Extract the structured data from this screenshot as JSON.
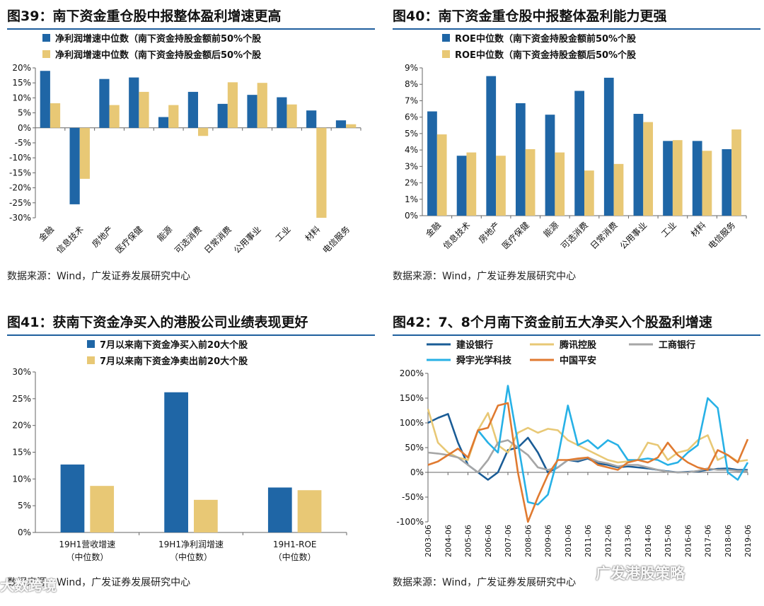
{
  "colors": {
    "blue": "#1f66a6",
    "gold": "#e8c875",
    "gray": "#a6a6a6",
    "cyan": "#27b1e6",
    "orange": "#e07a30",
    "navy": "#1a5c96"
  },
  "source_note": "数据来源：Wind，广发证券发展研究中心",
  "watermarks": {
    "left": "大数跨境",
    "right": "广发港股策略"
  },
  "chart_data": [
    {
      "id": "fig39",
      "type": "bar",
      "title": "图39：南下资金重仓股中报整体盈利增速更高",
      "categories": [
        "金融",
        "信息技术",
        "房地产",
        "医疗保健",
        "能源",
        "可选消费",
        "日常消费",
        "公用事业",
        "工业",
        "材料",
        "电信服务"
      ],
      "series": [
        {
          "name": "净利润增速中位数（南下资金持股金额前50%个股",
          "color": "#1f66a6",
          "values": [
            19,
            -25.5,
            16.3,
            16.8,
            3.6,
            12,
            8,
            11,
            10.2,
            5.8,
            2.5
          ]
        },
        {
          "name": "净利润增速中位数（南下资金持股金额后50%个股",
          "color": "#e8c875",
          "values": [
            8.2,
            -17,
            7.6,
            12,
            7.6,
            -2.7,
            15.2,
            15,
            7.8,
            -30,
            1.2
          ]
        }
      ],
      "ylim": [
        -30,
        20
      ],
      "yticks": [
        -30,
        -25,
        -20,
        -15,
        -10,
        -5,
        0,
        5,
        10,
        15,
        20
      ],
      "yformat": "%"
    },
    {
      "id": "fig40",
      "type": "bar",
      "title": "图40：南下资金重仓股中报整体盈利能力更强",
      "categories": [
        "金融",
        "信息技术",
        "房地产",
        "医疗保健",
        "能源",
        "可选消费",
        "日常消费",
        "公用事业",
        "工业",
        "材料",
        "电信服务"
      ],
      "series": [
        {
          "name": "ROE中位数（南下资金持股金额前50%个股",
          "color": "#1f66a6",
          "values": [
            6.35,
            3.65,
            8.5,
            6.85,
            6.15,
            7.6,
            8.4,
            6.2,
            4.55,
            4.55,
            4.05
          ]
        },
        {
          "name": "ROE中位数（南下资金持股金额后50%个股",
          "color": "#e8c875",
          "values": [
            4.95,
            3.85,
            3.65,
            4.05,
            3.85,
            2.75,
            3.15,
            5.7,
            4.6,
            3.95,
            5.25
          ]
        }
      ],
      "ylim": [
        0,
        9
      ],
      "yticks": [
        0,
        1,
        2,
        3,
        4,
        5,
        6,
        7,
        8,
        9
      ],
      "yformat": "%"
    },
    {
      "id": "fig41",
      "type": "bar",
      "title": "图41：获南下资金净买入的港股公司业绩表现更好",
      "categories": [
        "19H1营收增速",
        "19H1净利润增速",
        "19H1-ROE"
      ],
      "category_sub": [
        "（中位数）",
        "（中位数）",
        "（中位数）"
      ],
      "series": [
        {
          "name": "7月以来南下资金净买入前20大个股",
          "color": "#1f66a6",
          "values": [
            12.7,
            26.2,
            8.4
          ]
        },
        {
          "name": "7月以来南下资金净卖出前20大个股",
          "color": "#e8c875",
          "values": [
            8.7,
            6.1,
            7.9
          ]
        }
      ],
      "ylim": [
        0,
        30
      ],
      "yticks": [
        0,
        5,
        10,
        15,
        20,
        25,
        30
      ],
      "yformat": "%"
    },
    {
      "id": "fig42",
      "type": "line",
      "title": "图42：7、8个月南下资金前五大净买入个股盈利增速",
      "x": [
        "2003-06",
        "2003-12",
        "2004-06",
        "2004-12",
        "2005-06",
        "2005-12",
        "2006-06",
        "2006-12",
        "2007-06",
        "2007-12",
        "2008-06",
        "2008-12",
        "2009-06",
        "2009-12",
        "2010-06",
        "2010-12",
        "2011-06",
        "2011-12",
        "2012-06",
        "2012-12",
        "2013-06",
        "2013-12",
        "2014-06",
        "2014-12",
        "2015-06",
        "2015-12",
        "2016-06",
        "2016-12",
        "2017-06",
        "2017-12",
        "2018-06",
        "2018-12",
        "2019-06"
      ],
      "xticks": [
        "2003-06",
        "2004-06",
        "2005-06",
        "2006-06",
        "2007-06",
        "2008-06",
        "2009-06",
        "2010-06",
        "2011-06",
        "2012-06",
        "2013-06",
        "2014-06",
        "2015-06",
        "2016-06",
        "2017-06",
        "2018-06",
        "2019-06"
      ],
      "series": [
        {
          "name": "建设银行",
          "color": "#1a5c96",
          "values": [
            100,
            110,
            118,
            60,
            15,
            0,
            -15,
            0,
            45,
            50,
            70,
            40,
            0,
            10,
            25,
            22,
            28,
            18,
            15,
            10,
            12,
            10,
            8,
            5,
            2,
            0,
            1,
            2,
            5,
            7,
            8,
            5,
            5
          ]
        },
        {
          "name": "腾讯控股",
          "color": "#e8c875",
          "values": [
            128,
            60,
            40,
            30,
            25,
            85,
            120,
            55,
            40,
            80,
            90,
            80,
            88,
            85,
            65,
            55,
            45,
            35,
            25,
            20,
            22,
            25,
            60,
            55,
            25,
            40,
            45,
            65,
            75,
            25,
            35,
            22,
            25
          ]
        },
        {
          "name": "工商银行",
          "color": "#a6a6a6",
          "values": [
            40,
            38,
            35,
            30,
            15,
            0,
            25,
            60,
            65,
            50,
            35,
            10,
            5,
            10,
            25,
            25,
            30,
            22,
            18,
            12,
            15,
            15,
            10,
            5,
            1,
            0,
            0,
            3,
            8,
            5,
            5,
            3,
            3
          ]
        },
        {
          "name": "舜宇光学科技",
          "color": "#27b1e6",
          "values": [
            null,
            null,
            null,
            null,
            null,
            85,
            60,
            40,
            175,
            60,
            -60,
            -65,
            -45,
            30,
            135,
            55,
            65,
            48,
            65,
            55,
            25,
            25,
            28,
            25,
            15,
            20,
            40,
            55,
            150,
            130,
            0,
            -15,
            20
          ]
        },
        {
          "name": "中国平安",
          "color": "#e07a30",
          "values": [
            15,
            22,
            35,
            48,
            30,
            85,
            90,
            135,
            140,
            0,
            -100,
            -50,
            -5,
            25,
            25,
            28,
            30,
            15,
            10,
            5,
            20,
            25,
            20,
            30,
            60,
            35,
            20,
            10,
            5,
            45,
            35,
            20,
            67
          ]
        }
      ],
      "ylim": [
        -100,
        200
      ],
      "yticks": [
        -100,
        -50,
        0,
        50,
        100,
        150,
        200
      ],
      "yformat": "%"
    }
  ]
}
